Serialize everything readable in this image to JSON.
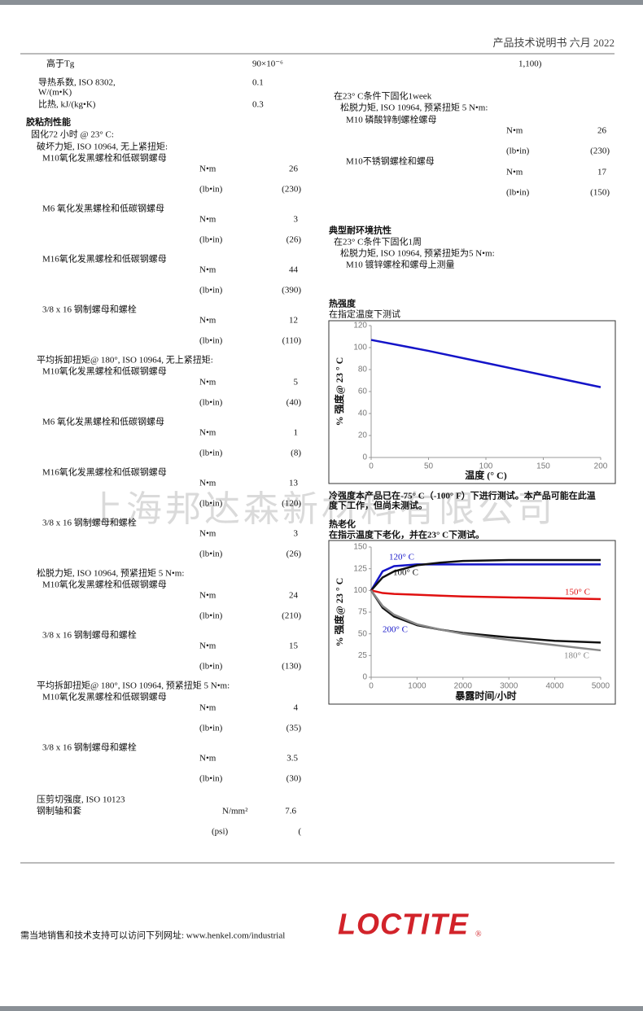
{
  "header": {
    "title": "产品技术说明书 六月 2022"
  },
  "thermal_properties": [
    {
      "label": [
        "高于Tg"
      ],
      "value": "90×10⁻⁶"
    },
    {
      "label": [
        "导热系数, ISO 8302,",
        "W/(m•K)"
      ],
      "value": "0.1"
    },
    {
      "label": [
        "比热, kJ/(kg•K)"
      ],
      "value": "0.3"
    }
  ],
  "adhesive": {
    "title": "胶粘剂性能",
    "cure": "固化72  小时 @ 23° C:",
    "groups": [
      {
        "title": "破坏力矩, ISO 10964, 无上紧扭矩:",
        "items": [
          {
            "name": "M10氧化发黑螺栓和低碳钢螺母",
            "unit_si": "N•m",
            "value_si": "26",
            "unit_us": "(lb•in)",
            "value_us": "(230)"
          },
          {
            "name": "M6  氧化发黑螺栓和低碳钢螺母",
            "unit_si": "N•m",
            "value_si": "3",
            "unit_us": "(lb•in)",
            "value_us": "(26)"
          },
          {
            "name": "M16氧化发黑螺栓和低碳钢螺母",
            "unit_si": "N•m",
            "value_si": "44",
            "unit_us": "(lb•in)",
            "value_us": "(390)"
          },
          {
            "name": "3/8 x 16 钢制螺母和螺栓",
            "unit_si": "N•m",
            "value_si": "12",
            "unit_us": "(lb•in)",
            "value_us": "(110)"
          }
        ]
      },
      {
        "title": "平均拆卸扭矩@ 180°, ISO 10964, 无上紧扭矩:",
        "items": [
          {
            "name": "M10氧化发黑螺栓和低碳钢螺母",
            "unit_si": "N•m",
            "value_si": "5",
            "unit_us": "(lb•in)",
            "value_us": "(40)"
          },
          {
            "name": "M6   氧化发黑螺栓和低碳钢螺母",
            "unit_si": "N•m",
            "value_si": "1",
            "unit_us": "(lb•in)",
            "value_us": "(8)"
          },
          {
            "name": "M16氧化发黑螺栓和低碳钢螺母",
            "unit_si": "N•m",
            "value_si": "13",
            "unit_us": "(lb•in)",
            "value_us": "(120)"
          },
          {
            "name": "3/8 x 16 钢制螺母和螺栓",
            "unit_si": "N•m",
            "value_si": "3",
            "unit_us": "(lb•in)",
            "value_us": "(26)"
          }
        ]
      },
      {
        "title": "松脱力矩, ISO 10964,  预紧扭矩  5  N•m:",
        "items": [
          {
            "name": "M10氧化发黑螺栓和低碳钢螺母",
            "unit_si": "N•m",
            "value_si": "24",
            "unit_us": "(lb•in)",
            "value_us": "(210)"
          },
          {
            "name": "3/8 x 16 钢制螺母和螺栓",
            "unit_si": "N•m",
            "value_si": "15",
            "unit_us": "(lb•in)",
            "value_us": "(130)"
          }
        ]
      },
      {
        "title": "平均拆卸扭矩@ 180°, ISO 10964,  预紧扭矩  5  N•m:",
        "items": [
          {
            "name": "M10氧化发黑螺栓和低碳钢螺母",
            "unit_si": "N•m",
            "value_si": "4",
            "unit_us": "(lb•in)",
            "value_us": "(35)"
          },
          {
            "name": "3/8 x 16 钢制螺母和螺栓",
            "unit_si": "N•m",
            "value_si": "3.5",
            "unit_us": "(lb•in)",
            "value_us": "(30)"
          }
        ]
      }
    ]
  },
  "shear": {
    "title": "压剪切强度,    ISO 10123",
    "name": "钢制轴和套",
    "unit_si": "N/mm²",
    "value_si": "7.6",
    "unit_us": "(psi)",
    "value_us": "("
  },
  "right_top": {
    "continued": "1,100)",
    "cure": "在23° C条件下固化1week",
    "test": "松脱力矩, ISO 10964,  预紧扭矩  5  N•m:",
    "items": [
      {
        "name": "M10  磷酸锌制螺栓螺母",
        "unit_si": "N•m",
        "value_si": "26",
        "unit_us": "(lb•in)",
        "value_us": "(230)"
      },
      {
        "name": "M10不锈钢螺栓和螺母",
        "unit_si": "N•m",
        "value_si": "17",
        "unit_us": "(lb•in)",
        "value_us": "(150)"
      }
    ]
  },
  "environment": {
    "title": "典型耐环境抗性",
    "lines": [
      "在23° C条件下固化1周",
      "松脱力矩, ISO 10964, 预紧扭矩为5 N•m:",
      "M10  镀锌螺栓和螺母上测量"
    ]
  },
  "hot_strength": {
    "title": "热强度",
    "subtitle": "在指定温度下测试"
  },
  "cold_strength": {
    "lines": [
      "冷强度本产品已在-75° C（-100° F）下进行测试。本产品可能在此温",
      "度下工作，但尚未测试。"
    ]
  },
  "heat_aging": {
    "title": "热老化",
    "subtitle": "在指示温度下老化，并在23° C下测试。"
  },
  "footer": {
    "text": "需当地销售和技术支持可以访问下列网址:  www.henkel.com/industrial",
    "logo": "LOCTITE",
    "logo_mark": "®"
  },
  "watermark": "上海邦达森新材料有限公司",
  "chart_data": [
    {
      "type": "line",
      "x_label": "温度 (° C)",
      "y_label": "% 强度@ 23 ° C",
      "x": [
        0,
        50,
        100,
        150,
        200
      ],
      "series": [
        {
          "name": "强度",
          "color": "#1414c8",
          "values": [
            107,
            97,
            86,
            75,
            64
          ]
        }
      ],
      "xlim": [
        0,
        200
      ],
      "xticks": [
        0,
        50,
        100,
        150,
        200
      ],
      "ylim": [
        0,
        120
      ],
      "yticks": [
        0,
        20,
        40,
        60,
        80,
        100,
        120
      ]
    },
    {
      "type": "line",
      "x_label": "暴露时间/小时",
      "y_label": "% 强度@ 23 ° C",
      "x": [
        0,
        250,
        500,
        1000,
        1500,
        2000,
        3000,
        4000,
        5000
      ],
      "series": [
        {
          "name": "120° C",
          "color": "#1414c8",
          "values": [
            100,
            122,
            128,
            130,
            130,
            130,
            130,
            130,
            130
          ]
        },
        {
          "name": "100° C",
          "color": "#111111",
          "values": [
            100,
            115,
            122,
            129,
            132,
            134,
            135,
            135,
            135
          ]
        },
        {
          "name": "150° C",
          "color": "#e01010",
          "values": [
            100,
            97,
            96,
            95,
            94,
            93,
            92,
            91,
            90
          ]
        },
        {
          "name": "200° C",
          "color": "#111111",
          "values": [
            100,
            80,
            70,
            60,
            55,
            51,
            46,
            42,
            40
          ]
        },
        {
          "name": "180° C",
          "color": "#888888",
          "values": [
            100,
            82,
            72,
            61,
            55,
            50,
            43,
            37,
            31
          ]
        }
      ],
      "xlim": [
        0,
        5000
      ],
      "xticks": [
        0,
        1000,
        2000,
        3000,
        4000,
        5000
      ],
      "ylim": [
        0,
        150
      ],
      "yticks": [
        0,
        25,
        50,
        75,
        100,
        125,
        150
      ]
    }
  ]
}
